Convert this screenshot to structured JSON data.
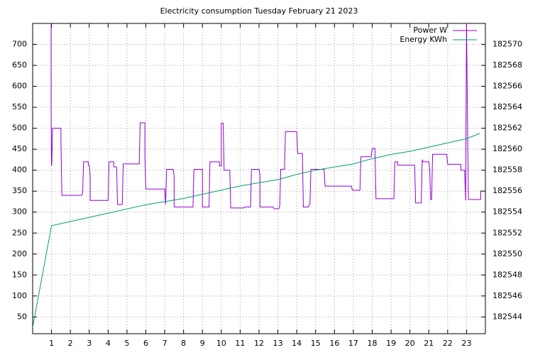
{
  "chart_data": {
    "type": "line",
    "title": "Electricity consumption Tuesday February 21 2023",
    "xlim": [
      0,
      24
    ],
    "xticks": [
      1,
      2,
      3,
      4,
      5,
      6,
      7,
      8,
      9,
      10,
      11,
      12,
      13,
      14,
      15,
      16,
      17,
      18,
      19,
      20,
      21,
      22,
      23
    ],
    "ylim": [
      10,
      750
    ],
    "yticks": [
      50,
      100,
      150,
      200,
      250,
      300,
      350,
      400,
      450,
      500,
      550,
      600,
      650,
      700
    ],
    "y2lim": [
      182542.4,
      182572
    ],
    "y2ticks": [
      182544,
      182546,
      182548,
      182550,
      182552,
      182554,
      182556,
      182558,
      182560,
      182562,
      182564,
      182566,
      182568,
      182570
    ],
    "grid": true,
    "legend": "top right",
    "series": [
      {
        "name": "Power W",
        "color": "#9400d3",
        "axis": "y",
        "x": [
          0.98,
          0.98,
          1.0,
          1.02,
          1.05,
          1.5,
          1.5,
          1.55,
          2.6,
          2.65,
          2.7,
          2.95,
          2.95,
          3.0,
          3.05,
          3.05,
          4.0,
          4.05,
          4.3,
          4.3,
          4.45,
          4.5,
          4.75,
          4.8,
          5.65,
          5.7,
          5.95,
          5.95,
          6.0,
          7.0,
          7.05,
          7.1,
          7.45,
          7.5,
          7.5,
          8.5,
          8.55,
          9.0,
          9.0,
          9.35,
          9.4,
          9.9,
          9.9,
          10.0,
          10.0,
          10.1,
          10.15,
          10.45,
          10.5,
          11.2,
          11.25,
          11.55,
          11.6,
          12.0,
          12.05,
          12.05,
          12.75,
          12.8,
          13.05,
          13.1,
          13.15,
          13.35,
          13.4,
          14.0,
          14.05,
          14.3,
          14.35,
          14.6,
          14.7,
          14.75,
          15.45,
          15.5,
          16.9,
          16.95,
          17.35,
          17.4,
          17.95,
          18.0,
          18.15,
          18.15,
          18.2,
          19.15,
          19.2,
          19.35,
          19.35,
          20.25,
          20.3,
          20.6,
          20.65,
          20.7,
          21.0,
          21.05,
          21.1,
          21.15,
          21.2,
          21.95,
          22.0,
          22.7,
          22.7,
          22.9,
          22.95,
          23.0,
          23.05,
          23.1,
          23.75,
          23.75
        ],
        "values": [
          750,
          540,
          410,
          420,
          500,
          500,
          465,
          340,
          340,
          345,
          420,
          420,
          412,
          412,
          385,
          328,
          328,
          420,
          420,
          408,
          408,
          318,
          318,
          415,
          415,
          513,
          513,
          435,
          355,
          355,
          318,
          402,
          402,
          385,
          312,
          312,
          402,
          402,
          312,
          312,
          420,
          420,
          410,
          410,
          512,
          512,
          400,
          400,
          310,
          310,
          312,
          312,
          402,
          402,
          390,
          312,
          312,
          308,
          308,
          315,
          402,
          402,
          492,
          492,
          440,
          440,
          312,
          312,
          320,
          402,
          402,
          362,
          362,
          352,
          352,
          432,
          432,
          452,
          452,
          435,
          332,
          332,
          420,
          420,
          412,
          412,
          322,
          322,
          425,
          420,
          420,
          400,
          330,
          330,
          438,
          438,
          414,
          414,
          400,
          400,
          328,
          750,
          530,
          330,
          330,
          352
        ]
      },
      {
        "name": "Energy KWh",
        "color": "#009e73",
        "axis": "y2",
        "x": [
          0,
          1,
          2,
          3,
          4,
          5,
          6,
          7,
          8,
          9,
          10,
          11,
          12,
          13,
          14,
          15,
          16,
          17,
          18,
          19,
          20,
          21,
          22,
          23,
          23.7
        ],
        "values": [
          182543.0,
          182552.7,
          182553.1,
          182553.5,
          182553.9,
          182554.3,
          182554.7,
          182555.0,
          182555.3,
          182555.7,
          182556.1,
          182556.5,
          182556.8,
          182557.1,
          182557.6,
          182558.0,
          182558.3,
          182558.6,
          182559.1,
          182559.5,
          182559.8,
          182560.2,
          182560.6,
          182561.0,
          182561.5
        ]
      }
    ]
  }
}
